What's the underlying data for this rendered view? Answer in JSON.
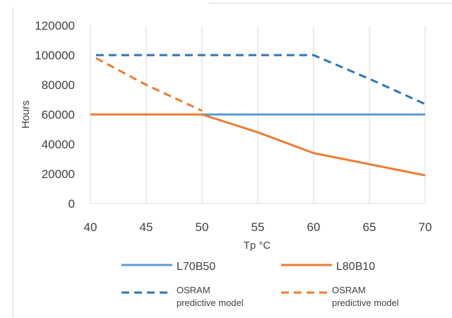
{
  "chart_data": {
    "type": "line",
    "xlabel": "Tp °C",
    "ylabel": "Hours",
    "xlim": [
      40,
      70
    ],
    "ylim": [
      0,
      120000
    ],
    "x_ticks": [
      "40",
      "45",
      "50",
      "55",
      "60",
      "65",
      "70"
    ],
    "y_ticks": [
      "0",
      "20000",
      "40000",
      "60000",
      "80000",
      "100000",
      "120000"
    ],
    "grid": "vertical",
    "legend_position": "bottom",
    "series": [
      {
        "legend_label": "L70B50",
        "color": "#5B9BD5",
        "style": "solid",
        "points": [
          [
            40,
            60000
          ],
          [
            70,
            60000
          ]
        ]
      },
      {
        "legend_label": "L80B10",
        "color": "#ED7D31",
        "style": "solid",
        "points": [
          [
            40,
            60000
          ],
          [
            50,
            60000
          ],
          [
            55,
            48000
          ],
          [
            60,
            34000
          ],
          [
            65,
            26500
          ],
          [
            70,
            19000
          ]
        ]
      },
      {
        "legend_label": [
          "OSRAM",
          "predictive model"
        ],
        "color": "#2E75B6",
        "style": "dashed",
        "points": [
          [
            40.5,
            100000
          ],
          [
            60,
            100000
          ],
          [
            65,
            84000
          ],
          [
            70,
            67000
          ]
        ]
      },
      {
        "legend_label": [
          "OSRAM",
          "predictive model"
        ],
        "color": "#ED7D31",
        "style": "dashed",
        "points": [
          [
            40.5,
            98000
          ],
          [
            45,
            80000
          ],
          [
            50,
            62500
          ]
        ]
      }
    ]
  }
}
